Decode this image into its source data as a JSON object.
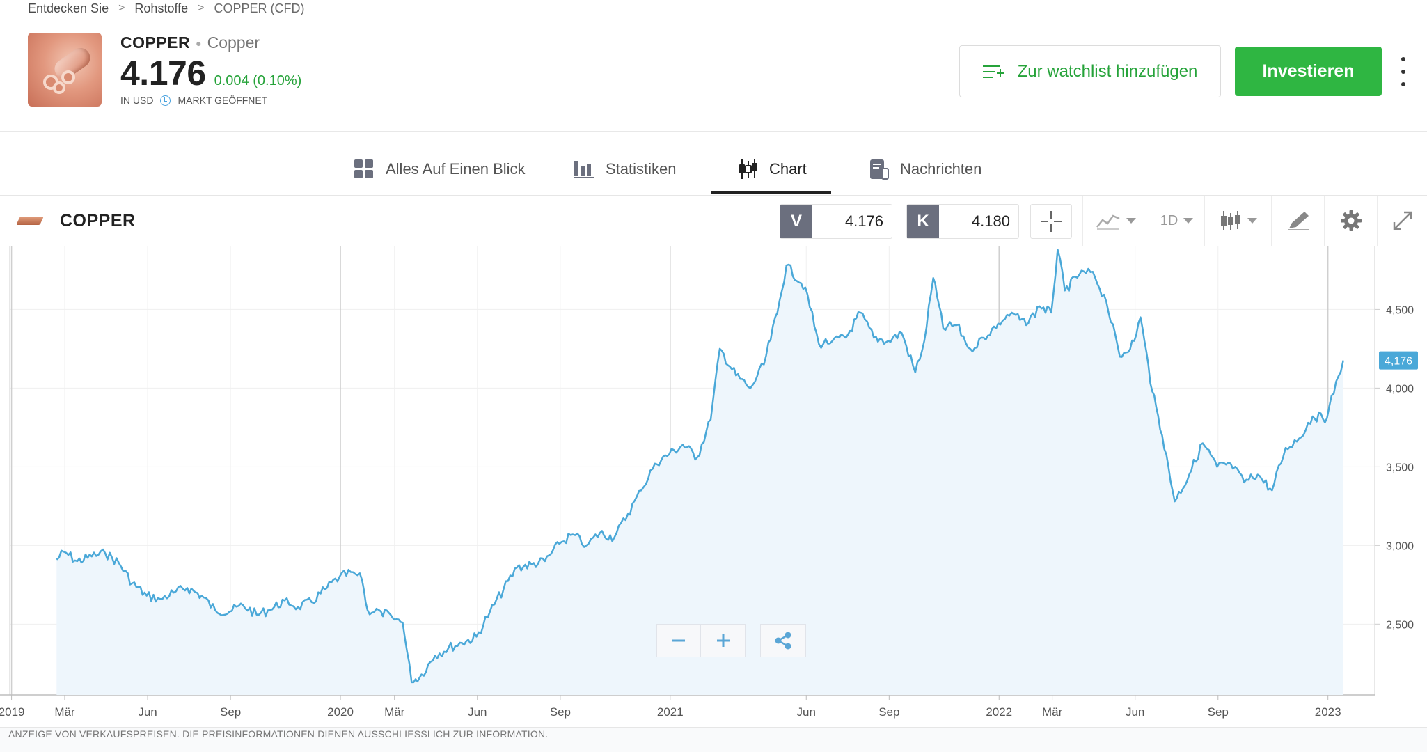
{
  "breadcrumb": [
    "Entdecken Sie",
    "Rohstoffe",
    "COPPER (CFD)"
  ],
  "asset": {
    "symbol": "COPPER",
    "name": "Copper",
    "price": "4.176",
    "change": "0.004 (0.10%)",
    "currency": "IN USD",
    "market_status": "MARKT GEÖFFNET"
  },
  "actions": {
    "watchlist_label": "Zur watchlist hinzufügen",
    "invest_label": "Investieren"
  },
  "tabs": [
    {
      "label": "Alles Auf Einen Blick",
      "icon": "grid-icon"
    },
    {
      "label": "Statistiken",
      "icon": "bar-chart-icon"
    },
    {
      "label": "Chart",
      "icon": "candlestick-icon",
      "active": true
    },
    {
      "label": "Nachrichten",
      "icon": "news-icon"
    }
  ],
  "chart_toolbar": {
    "instrument": "COPPER",
    "sell_letter": "V",
    "sell_price": "4.176",
    "buy_letter": "K",
    "buy_price": "4.180",
    "interval": "1D"
  },
  "chart_data": {
    "type": "area",
    "series_color": "#4aa8d8",
    "fill_color": "#eef6fc",
    "ylim": [
      2050,
      4900
    ],
    "y_ticks": [
      "2,500",
      "3,000",
      "3,500",
      "4,000",
      "4,500"
    ],
    "y_tick_values": [
      2500,
      3000,
      3500,
      4000,
      4500
    ],
    "x_ticks": [
      "2019",
      "Mär",
      "Jun",
      "Sep",
      "2020",
      "Mär",
      "Jun",
      "Sep",
      "2021",
      "Jun",
      "Sep",
      "2022",
      "Mär",
      "Jun",
      "Sep",
      "2023"
    ],
    "x_tick_dates": [
      "2019-01",
      "2019-03",
      "2019-06",
      "2019-09",
      "2020-01",
      "2020-03",
      "2020-06",
      "2020-09",
      "2021-01",
      "2021-06",
      "2021-09",
      "2022-01",
      "2022-03",
      "2022-06",
      "2022-09",
      "2023-01"
    ],
    "last_value_label": "4,176",
    "points": [
      [
        "2019-02-20",
        2910
      ],
      [
        "2019-02-28",
        2960
      ],
      [
        "2019-03-15",
        2900
      ],
      [
        "2019-03-31",
        2930
      ],
      [
        "2019-04-15",
        2950
      ],
      [
        "2019-04-30",
        2890
      ],
      [
        "2019-05-15",
        2760
      ],
      [
        "2019-05-31",
        2680
      ],
      [
        "2019-06-15",
        2660
      ],
      [
        "2019-06-30",
        2700
      ],
      [
        "2019-07-15",
        2730
      ],
      [
        "2019-07-31",
        2680
      ],
      [
        "2019-08-15",
        2590
      ],
      [
        "2019-08-31",
        2580
      ],
      [
        "2019-09-15",
        2620
      ],
      [
        "2019-09-30",
        2560
      ],
      [
        "2019-10-15",
        2590
      ],
      [
        "2019-10-31",
        2650
      ],
      [
        "2019-11-15",
        2610
      ],
      [
        "2019-11-30",
        2640
      ],
      [
        "2019-12-15",
        2720
      ],
      [
        "2019-12-31",
        2800
      ],
      [
        "2020-01-15",
        2830
      ],
      [
        "2020-01-25",
        2780
      ],
      [
        "2020-01-31",
        2590
      ],
      [
        "2020-02-15",
        2580
      ],
      [
        "2020-02-28",
        2540
      ],
      [
        "2020-03-10",
        2510
      ],
      [
        "2020-03-20",
        2130
      ],
      [
        "2020-03-31",
        2180
      ],
      [
        "2020-04-15",
        2300
      ],
      [
        "2020-04-30",
        2350
      ],
      [
        "2020-05-15",
        2380
      ],
      [
        "2020-05-31",
        2420
      ],
      [
        "2020-06-15",
        2580
      ],
      [
        "2020-06-30",
        2720
      ],
      [
        "2020-07-15",
        2860
      ],
      [
        "2020-07-31",
        2880
      ],
      [
        "2020-08-15",
        2900
      ],
      [
        "2020-08-31",
        3010
      ],
      [
        "2020-09-15",
        3070
      ],
      [
        "2020-09-30",
        3000
      ],
      [
        "2020-10-15",
        3080
      ],
      [
        "2020-10-31",
        3050
      ],
      [
        "2020-11-15",
        3200
      ],
      [
        "2020-11-30",
        3350
      ],
      [
        "2020-12-15",
        3520
      ],
      [
        "2020-12-31",
        3580
      ],
      [
        "2021-01-15",
        3640
      ],
      [
        "2021-01-31",
        3560
      ],
      [
        "2021-02-15",
        3800
      ],
      [
        "2021-02-25",
        4250
      ],
      [
        "2021-03-15",
        4080
      ],
      [
        "2021-03-31",
        4000
      ],
      [
        "2021-04-15",
        4150
      ],
      [
        "2021-04-30",
        4480
      ],
      [
        "2021-05-10",
        4780
      ],
      [
        "2021-05-31",
        4640
      ],
      [
        "2021-06-15",
        4280
      ],
      [
        "2021-06-30",
        4300
      ],
      [
        "2021-07-15",
        4320
      ],
      [
        "2021-07-31",
        4480
      ],
      [
        "2021-08-15",
        4320
      ],
      [
        "2021-08-31",
        4300
      ],
      [
        "2021-09-15",
        4350
      ],
      [
        "2021-09-30",
        4100
      ],
      [
        "2021-10-10",
        4300
      ],
      [
        "2021-10-20",
        4700
      ],
      [
        "2021-10-31",
        4380
      ],
      [
        "2021-11-15",
        4400
      ],
      [
        "2021-11-30",
        4250
      ],
      [
        "2021-12-15",
        4320
      ],
      [
        "2021-12-31",
        4410
      ],
      [
        "2022-01-15",
        4480
      ],
      [
        "2022-01-31",
        4400
      ],
      [
        "2022-02-15",
        4520
      ],
      [
        "2022-02-28",
        4480
      ],
      [
        "2022-03-07",
        4880
      ],
      [
        "2022-03-15",
        4620
      ],
      [
        "2022-03-31",
        4720
      ],
      [
        "2022-04-15",
        4740
      ],
      [
        "2022-04-30",
        4550
      ],
      [
        "2022-05-15",
        4200
      ],
      [
        "2022-05-31",
        4300
      ],
      [
        "2022-06-07",
        4450
      ],
      [
        "2022-06-20",
        3980
      ],
      [
        "2022-07-01",
        3700
      ],
      [
        "2022-07-15",
        3280
      ],
      [
        "2022-07-31",
        3450
      ],
      [
        "2022-08-15",
        3650
      ],
      [
        "2022-08-31",
        3500
      ],
      [
        "2022-09-15",
        3520
      ],
      [
        "2022-09-30",
        3400
      ],
      [
        "2022-10-15",
        3450
      ],
      [
        "2022-10-31",
        3350
      ],
      [
        "2022-11-15",
        3620
      ],
      [
        "2022-11-30",
        3680
      ],
      [
        "2022-12-15",
        3820
      ],
      [
        "2022-12-31",
        3810
      ],
      [
        "2023-01-10",
        4040
      ],
      [
        "2023-01-18",
        4176
      ]
    ]
  },
  "disclaimer": "ANZEIGE VON VERKAUFSPREISEN. DIE PREISINFORMATIONEN DIENEN AUSSCHLIESSLICH ZUR INFORMATION."
}
